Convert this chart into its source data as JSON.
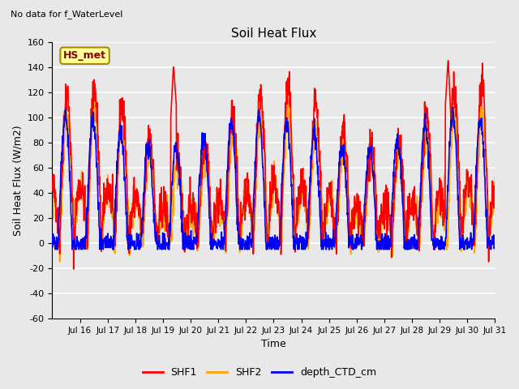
{
  "title": "Soil Heat Flux",
  "suptitle": "No data for f_WaterLevel",
  "ylabel": "Soil Heat Flux (W/m2)",
  "xlabel": "Time",
  "ylim": [
    -60,
    160
  ],
  "ytick_values": [
    -60,
    -40,
    -20,
    0,
    20,
    40,
    60,
    80,
    100,
    120,
    140,
    160
  ],
  "xtick_labels": [
    "Jul 16",
    "Jul 17",
    "Jul 18",
    "Jul 19",
    "Jul 20",
    "Jul 21",
    "Jul 22",
    "Jul 23",
    "Jul 24",
    "Jul 25",
    "Jul 26",
    "Jul 27",
    "Jul 28",
    "Jul 29",
    "Jul 30",
    "Jul 31"
  ],
  "line_colors": {
    "SHF1": "#ff0000",
    "SHF2": "#ffa500",
    "depth_CTD_cm": "#0000ff"
  },
  "line_widths": {
    "SHF1": 1.2,
    "SHF2": 1.2,
    "depth_CTD_cm": 1.2
  },
  "legend_label": "HS_met",
  "legend_box_facecolor": "#ffff99",
  "legend_box_edgecolor": "#aa8800",
  "legend_text_color": "#880000",
  "fig_facecolor": "#e8e8e8",
  "plot_facecolor": "#e8e8e8",
  "grid_color": "#ffffff",
  "n_days": 16,
  "ppd": 96,
  "seed": 42
}
